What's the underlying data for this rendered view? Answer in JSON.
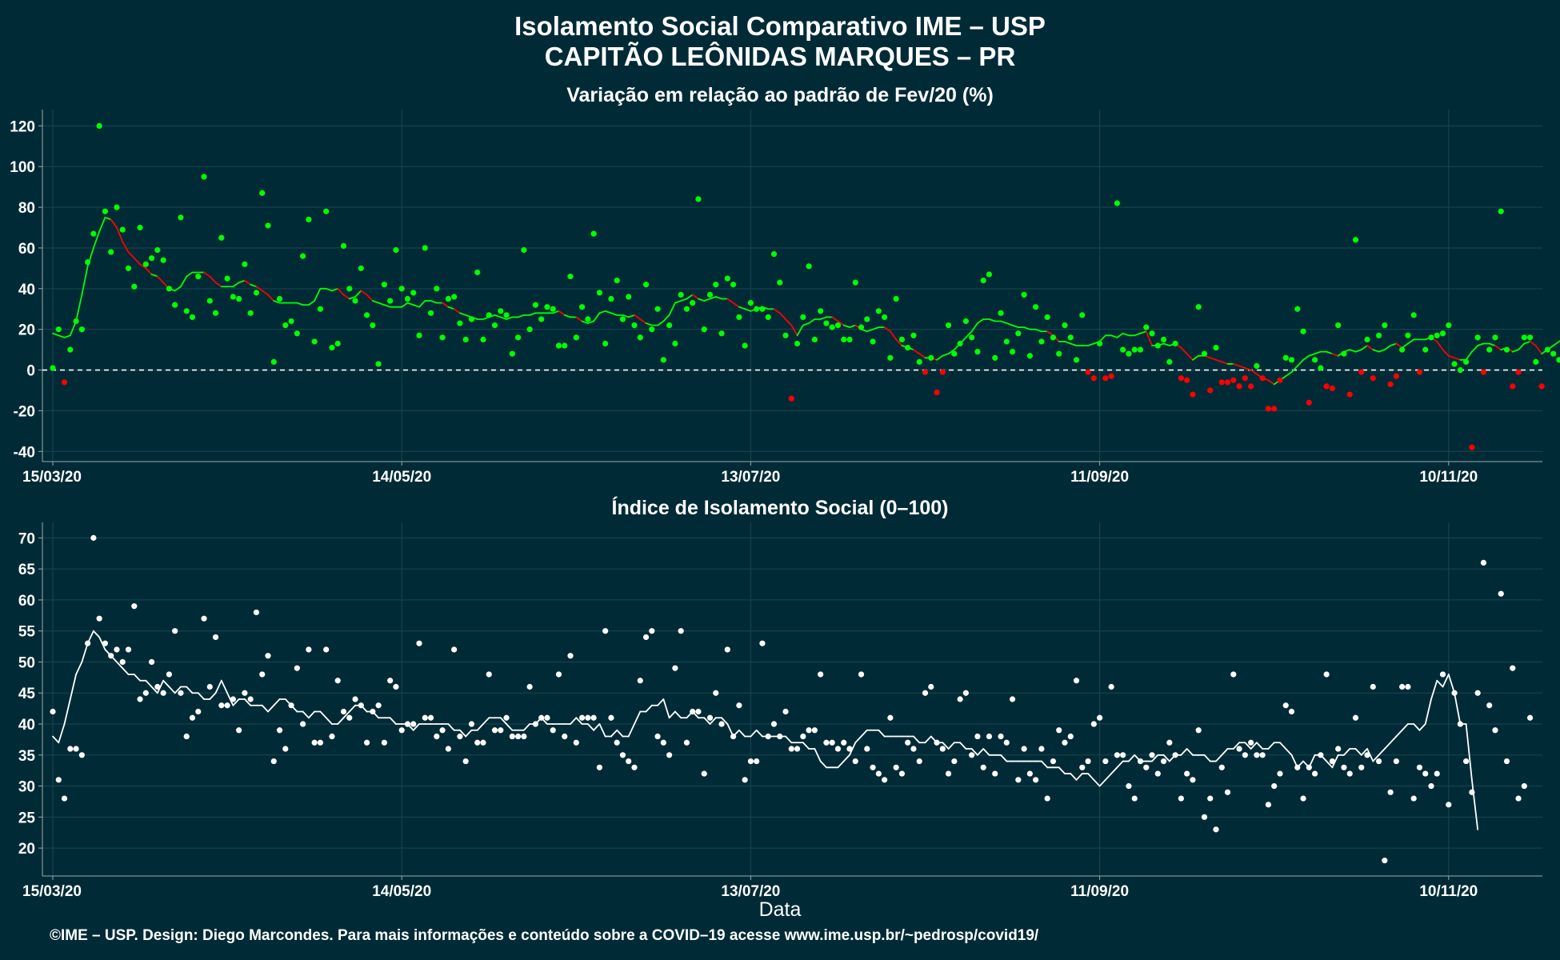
{
  "header": {
    "title_line1": "Isolamento Social Comparativo IME – USP",
    "title_line2": "CAPITÃO LEÔNIDAS MARQUES – PR"
  },
  "footer": {
    "credit": "©IME – USP. Design: Diego Marcondes. Para mais informações e conteúdo sobre a COVID–19 acesse www.ime.usp.br/~pedrosp/covid19/"
  },
  "colors": {
    "background": "#002b36",
    "positive": "#00ff00",
    "negative": "#ff0000",
    "index": "#ffffff",
    "grid": "#1b4650",
    "axis": "#9aa9ad"
  },
  "chart_data": [
    {
      "type": "scatter",
      "title": "Variação em relação ao padrão de Fev/20 (%)",
      "xlabel": "",
      "ylabel": "",
      "x_start": "15/03/20",
      "x_end": "27/11/20",
      "x_ticks": [
        "15/03/20",
        "14/05/20",
        "13/07/20",
        "11/09/20",
        "10/11/20"
      ],
      "x_tick_days": [
        0,
        60,
        120,
        180,
        240
      ],
      "ylim": [
        -45,
        128
      ],
      "y_ticks": [
        -40,
        -20,
        0,
        20,
        40,
        60,
        80,
        100,
        120
      ],
      "reference_line": 0,
      "grid": true,
      "legend": "none",
      "series": [
        {
          "role": "points",
          "values": [
            1,
            20,
            -6,
            10,
            24,
            20,
            53,
            67,
            120,
            78,
            58,
            80,
            69,
            50,
            41,
            70,
            52,
            55,
            59,
            54,
            40,
            32,
            75,
            29,
            26,
            46,
            95,
            34,
            28,
            65,
            45,
            36,
            35,
            52,
            28,
            38,
            87,
            71,
            4,
            35,
            22,
            24,
            18,
            56,
            74,
            14,
            30,
            78,
            11,
            13,
            61,
            40,
            34,
            50,
            27,
            22,
            3,
            42,
            34,
            59,
            40,
            35,
            38,
            17,
            60,
            28,
            40,
            16,
            35,
            36,
            23,
            15,
            25,
            48,
            15,
            27,
            22,
            29,
            27,
            8,
            16,
            59,
            20,
            32,
            25,
            31,
            30,
            12,
            12,
            46,
            16,
            31,
            25,
            67,
            38,
            13,
            35,
            44,
            25,
            36,
            22,
            16,
            42,
            20,
            30,
            5,
            22,
            13,
            37,
            30,
            33,
            84,
            20,
            37,
            42,
            18,
            45,
            42,
            26,
            12,
            33,
            30,
            30,
            26,
            57,
            43,
            17,
            -14,
            13,
            26,
            51,
            15,
            29,
            23,
            21,
            22,
            15,
            15,
            43,
            21,
            25,
            14,
            29,
            26,
            6,
            35,
            15,
            11,
            17,
            4,
            -1,
            6,
            -11,
            -1,
            22,
            8,
            13,
            24,
            16,
            9,
            44,
            47,
            6,
            28,
            14,
            9,
            18,
            37,
            7,
            31,
            14,
            26,
            16,
            8,
            22,
            16,
            5,
            27,
            -1,
            -4,
            13,
            -4,
            -3,
            82,
            10,
            8,
            10,
            10,
            21,
            18,
            12,
            15,
            4,
            13,
            -4,
            -5,
            -12,
            31,
            8,
            -10,
            11,
            -6,
            -6,
            -5,
            -8,
            -4,
            -8,
            2,
            -4,
            -19,
            -19,
            -5,
            6,
            5,
            30,
            19,
            -16,
            5,
            1,
            -8,
            -9,
            22,
            8,
            -12,
            64,
            -1,
            15,
            -4,
            17,
            22,
            -7,
            -3,
            10,
            17,
            27,
            -1,
            10,
            16,
            17,
            18,
            22,
            3,
            0,
            4,
            -38,
            16,
            -1,
            10,
            16,
            78,
            10,
            -8,
            -1,
            16,
            16,
            4,
            -8,
            10,
            8,
            5,
            32,
            -6,
            22,
            40,
            8,
            33,
            -8,
            27,
            -7,
            -9,
            -10,
            25,
            16,
            45,
            16,
            -7,
            -15
          ],
          "positive_color": "#00ff00",
          "negative_color": "#ff0000"
        },
        {
          "role": "moving_average",
          "values": [
            18,
            17,
            16,
            17,
            24,
            37,
            51,
            60,
            68,
            75,
            74,
            70,
            63,
            58,
            55,
            52,
            50,
            47,
            46,
            43,
            40,
            39,
            41,
            46,
            48,
            48,
            48,
            46,
            43,
            41,
            41,
            41,
            43,
            44,
            42,
            41,
            39,
            37,
            34,
            33,
            33,
            33,
            33,
            32,
            32,
            34,
            40,
            40,
            39,
            40,
            37,
            35,
            36,
            39,
            37,
            34,
            33,
            32,
            31,
            31,
            31,
            33,
            32,
            31,
            34,
            34,
            33,
            33,
            31,
            30,
            28,
            27,
            26,
            25,
            25,
            26,
            27,
            26,
            25,
            26,
            26,
            27,
            27,
            28,
            28,
            28,
            28,
            29,
            27,
            26,
            26,
            24,
            23,
            24,
            28,
            29,
            28,
            27,
            27,
            26,
            27,
            25,
            23,
            22,
            22,
            24,
            27,
            33,
            34,
            35,
            37,
            35,
            34,
            35,
            36,
            35,
            35,
            33,
            31,
            30,
            29,
            30,
            31,
            30,
            30,
            28,
            25,
            22,
            17,
            22,
            23,
            25,
            25,
            26,
            26,
            24,
            22,
            21,
            22,
            20,
            19,
            20,
            21,
            21,
            19,
            15,
            12,
            11,
            10,
            8,
            6,
            6,
            5,
            7,
            8,
            10,
            13,
            16,
            19,
            23,
            25,
            25,
            24,
            24,
            23,
            22,
            21,
            21,
            20,
            20,
            19,
            19,
            17,
            14,
            14,
            13,
            12,
            12,
            12,
            13,
            14,
            17,
            17,
            16,
            18,
            17,
            17,
            18,
            19,
            12,
            12,
            13,
            12,
            13,
            11,
            8,
            5,
            7,
            7,
            6,
            5,
            4,
            3,
            3,
            2,
            1,
            0,
            -2,
            -4,
            -5,
            -7,
            -5,
            -3,
            -1,
            2,
            5,
            7,
            8,
            9,
            9,
            8,
            7,
            9,
            10,
            9,
            10,
            12,
            10,
            9,
            10,
            12,
            13,
            11,
            13,
            15,
            15,
            15,
            16,
            14,
            10,
            7,
            6,
            5,
            5,
            9,
            12,
            13,
            13,
            12,
            10,
            11,
            9,
            10,
            13,
            14,
            12,
            8,
            10,
            12,
            14,
            16,
            18,
            20,
            22,
            24,
            28,
            33,
            38,
            39,
            37,
            36,
            35,
            26,
            22
          ]
        }
      ]
    },
    {
      "type": "scatter",
      "title": "Índice de Isolamento Social (0–100)",
      "xlabel": "Data",
      "ylabel": "",
      "x_start": "15/03/20",
      "x_end": "27/11/20",
      "x_ticks": [
        "15/03/20",
        "14/05/20",
        "13/07/20",
        "11/09/20",
        "10/11/20"
      ],
      "x_tick_days": [
        0,
        60,
        120,
        180,
        240
      ],
      "ylim": [
        15.5,
        72.5
      ],
      "y_ticks": [
        20,
        25,
        30,
        35,
        40,
        45,
        50,
        55,
        60,
        65,
        70
      ],
      "grid": true,
      "legend": "none",
      "series": [
        {
          "role": "points",
          "values": [
            42,
            31,
            28,
            36,
            36,
            35,
            53,
            70,
            57,
            53,
            51,
            52,
            50,
            52,
            59,
            44,
            45,
            50,
            46,
            45,
            48,
            55,
            45,
            38,
            41,
            42,
            57,
            46,
            54,
            43,
            43,
            44,
            39,
            45,
            44,
            58,
            48,
            51,
            34,
            39,
            36,
            43,
            49,
            40,
            52,
            37,
            37,
            52,
            38,
            47,
            42,
            41,
            44,
            43,
            37,
            42,
            43,
            37,
            47,
            46,
            39,
            40,
            40,
            53,
            41,
            41,
            38,
            39,
            36,
            52,
            38,
            34,
            40,
            37,
            37,
            48,
            39,
            39,
            41,
            38,
            38,
            38,
            46,
            40,
            41,
            41,
            39,
            48,
            38,
            51,
            37,
            41,
            41,
            41,
            33,
            55,
            41,
            37,
            35,
            34,
            33,
            47,
            54,
            55,
            38,
            37,
            35,
            49,
            55,
            37,
            42,
            42,
            32,
            41,
            45,
            40,
            52,
            38,
            43,
            31,
            34,
            34,
            53,
            38,
            40,
            38,
            42,
            36,
            36,
            38,
            39,
            39,
            48,
            37,
            37,
            36,
            37,
            36,
            34,
            48,
            36,
            33,
            32,
            31,
            41,
            33,
            32,
            37,
            36,
            34,
            45,
            46,
            37,
            36,
            32,
            34,
            44,
            45,
            35,
            38,
            33,
            38,
            32,
            38,
            37,
            44,
            31,
            36,
            32,
            31,
            36,
            28,
            34,
            39,
            37,
            38,
            47,
            33,
            34,
            40,
            41,
            34,
            46,
            35,
            35,
            30,
            28,
            34,
            33,
            35,
            32,
            34,
            37,
            35,
            28,
            32,
            31,
            39,
            25,
            28,
            23,
            33,
            29,
            48,
            36,
            35,
            37,
            35,
            35,
            27,
            30,
            32,
            43,
            42,
            33,
            28,
            33,
            32,
            35,
            48,
            34,
            36,
            33,
            32,
            41,
            33,
            35,
            46,
            34,
            18,
            29,
            34,
            46,
            46,
            28,
            33,
            32,
            30,
            32,
            48,
            27,
            45,
            40,
            34,
            29,
            45,
            66,
            43,
            39,
            61,
            34,
            49,
            28,
            30,
            41
          ],
          "color": "#ffffff"
        },
        {
          "role": "moving_average",
          "values": [
            38,
            37,
            40,
            44,
            48,
            50,
            53,
            55,
            54,
            52,
            51,
            50,
            49,
            48,
            48,
            47,
            47,
            46,
            45,
            47,
            46,
            45,
            46,
            46,
            45,
            45,
            44,
            44,
            45,
            47,
            45,
            43,
            44,
            44,
            43,
            43,
            43,
            42,
            43,
            44,
            44,
            43,
            42,
            42,
            41,
            42,
            42,
            41,
            40,
            40,
            41,
            42,
            43,
            43,
            42,
            42,
            41,
            41,
            41,
            40,
            40,
            40,
            39,
            40,
            40,
            40,
            40,
            40,
            40,
            39,
            39,
            38,
            39,
            39,
            40,
            41,
            41,
            41,
            40,
            39,
            39,
            39,
            40,
            40,
            41,
            40,
            40,
            40,
            40,
            40,
            41,
            40,
            40,
            39,
            40,
            38,
            38,
            39,
            38,
            38,
            40,
            42,
            42,
            43,
            43,
            44,
            41,
            42,
            41,
            41,
            42,
            41,
            41,
            40,
            41,
            41,
            40,
            38,
            39,
            38,
            38,
            39,
            38,
            38,
            38,
            38,
            38,
            37,
            37,
            37,
            36,
            36,
            34,
            33,
            33,
            33,
            34,
            35,
            37,
            38,
            39,
            39,
            39,
            38,
            38,
            38,
            38,
            38,
            38,
            37,
            37,
            38,
            37,
            37,
            36,
            37,
            37,
            36,
            36,
            35,
            36,
            35,
            35,
            35,
            34,
            34,
            34,
            34,
            34,
            34,
            34,
            33,
            33,
            33,
            32,
            32,
            31,
            32,
            32,
            31,
            30,
            31,
            32,
            33,
            34,
            34,
            35,
            34,
            34,
            34,
            35,
            35,
            34,
            35,
            35,
            36,
            35,
            35,
            35,
            34,
            34,
            35,
            36,
            36,
            37,
            37,
            36,
            37,
            36,
            36,
            37,
            37,
            36,
            35,
            33,
            34,
            33,
            35,
            35,
            34,
            33,
            35,
            35,
            36,
            36,
            35,
            36,
            34,
            35,
            36,
            37,
            38,
            39,
            40,
            40,
            39,
            40,
            44,
            47,
            46,
            48,
            45,
            40,
            40,
            31,
            23
          ]
        }
      ]
    }
  ]
}
